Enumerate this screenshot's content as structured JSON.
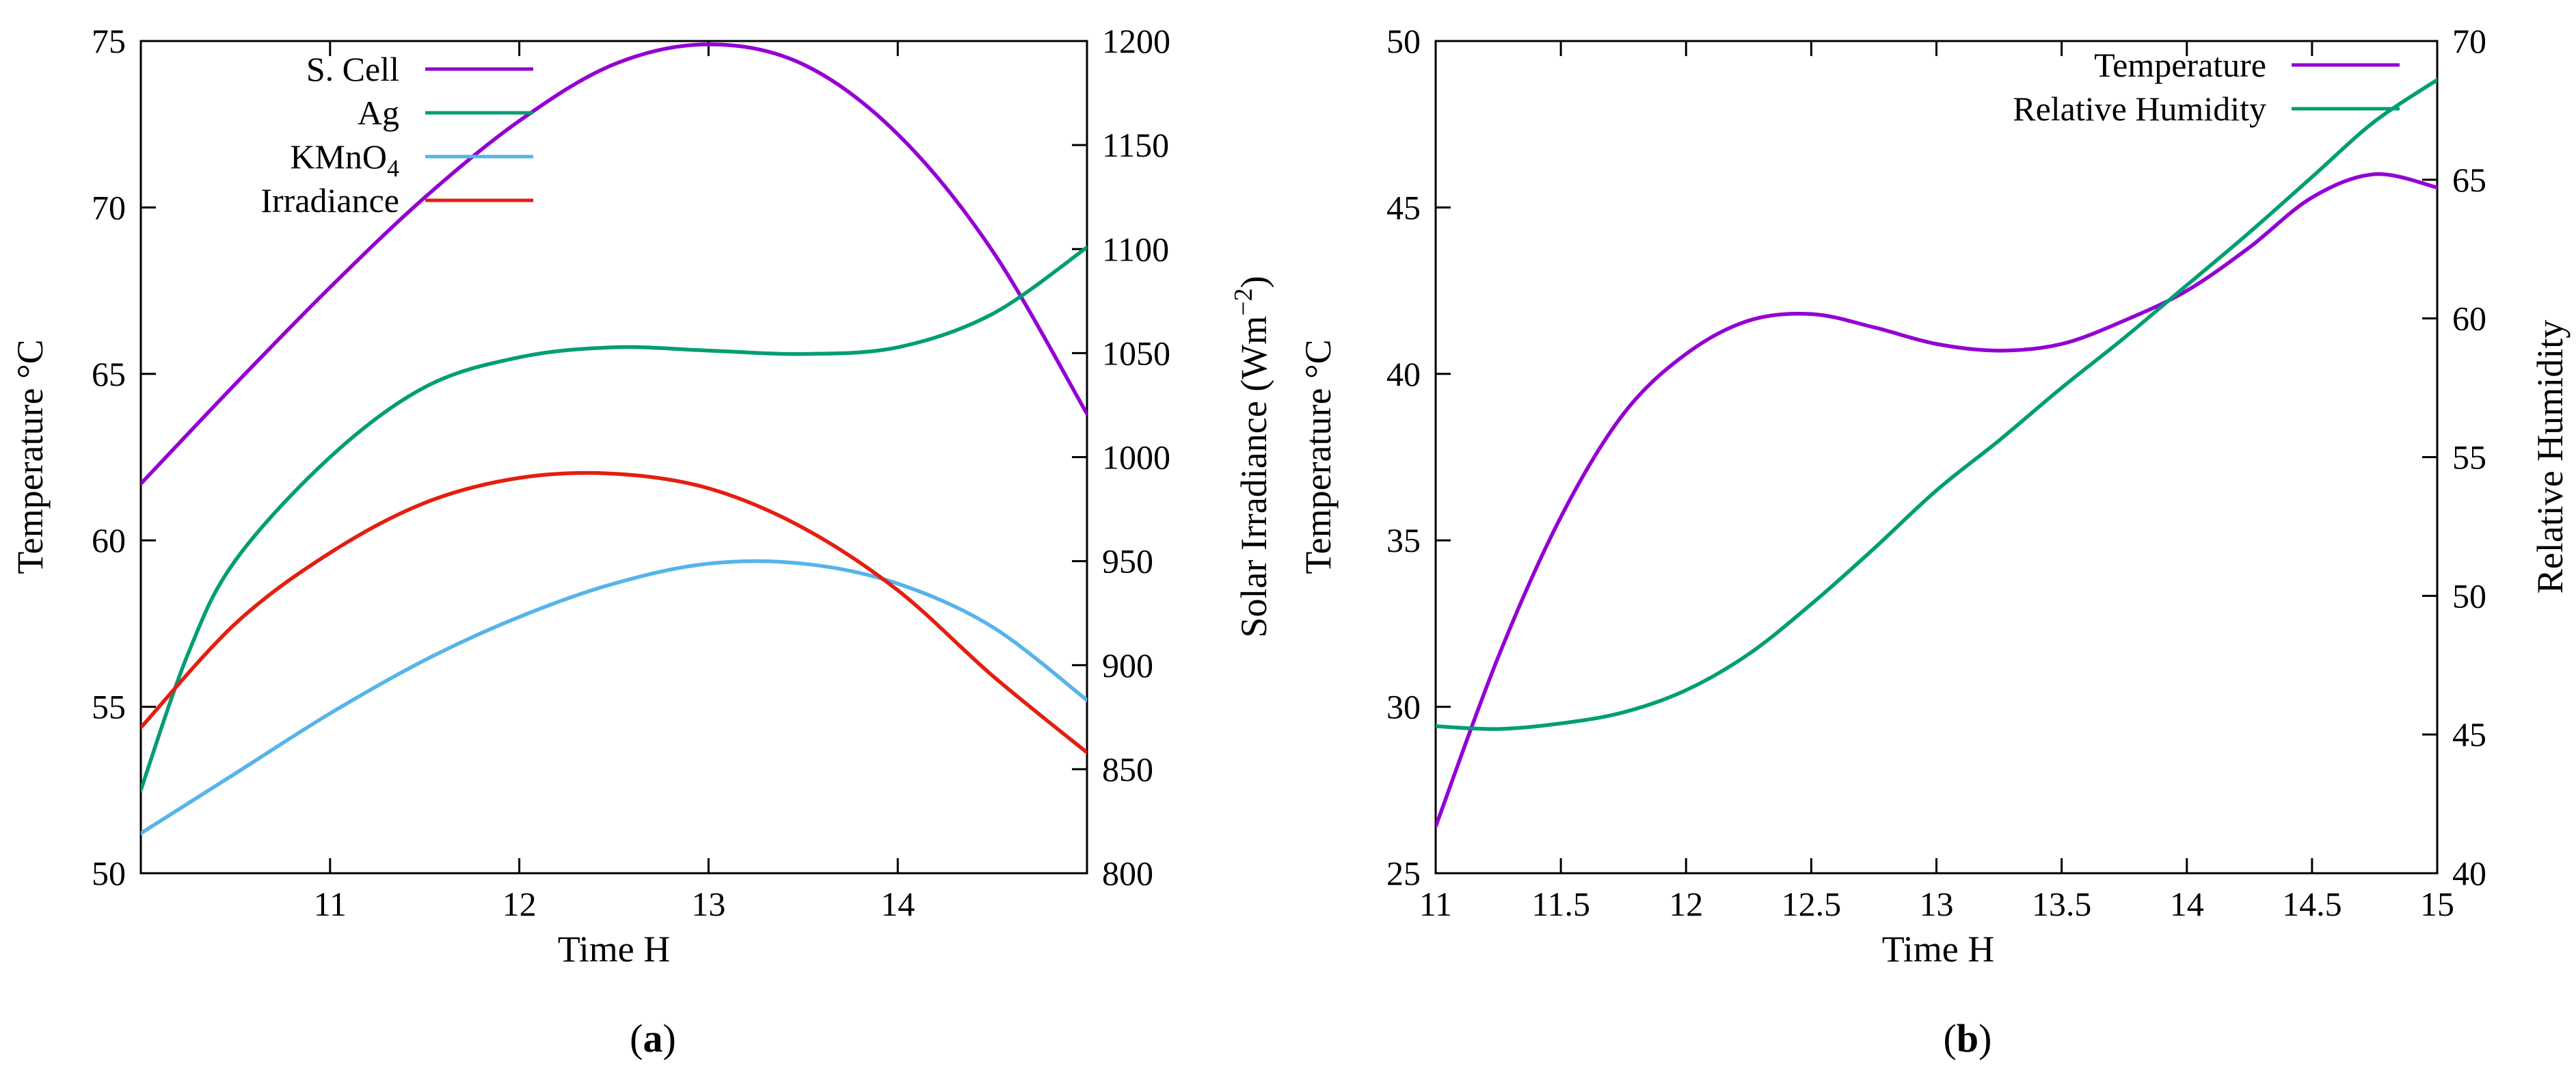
{
  "colors": {
    "purple": "#9400d3",
    "green": "#009e73",
    "blue": "#56b4e9",
    "red": "#e51e10"
  },
  "captions": {
    "a": "a",
    "b": "b"
  },
  "chart_data": [
    {
      "type": "line",
      "xlabel": "Time H",
      "ylabel": "Temperature °C",
      "y2label_base": "Solar Irradiance (Wm",
      "y2label_sup": "−2",
      "y2label_end": ")",
      "xlim": [
        10,
        15
      ],
      "ylim": [
        50,
        75
      ],
      "y2lim": [
        800,
        1200
      ],
      "xticks": [
        "11",
        "12",
        "13",
        "14"
      ],
      "xtick_values": [
        11,
        12,
        13,
        14
      ],
      "yticks": [
        "50",
        "55",
        "60",
        "65",
        "70",
        "75"
      ],
      "ytick_values": [
        50,
        55,
        60,
        65,
        70,
        75
      ],
      "y2ticks": [
        "800",
        "850",
        "900",
        "950",
        "1000",
        "1050",
        "1100",
        "1150",
        "1200"
      ],
      "y2tick_values": [
        800,
        850,
        900,
        950,
        1000,
        1050,
        1100,
        1150,
        1200
      ],
      "grid": false,
      "legend_position": "top-left",
      "series": [
        {
          "name": "S. Cell",
          "name_sub": "",
          "color": "#9400d3",
          "axis": "y",
          "x": [
            10,
            10.5,
            11,
            11.5,
            12,
            12.5,
            13,
            13.5,
            14,
            14.5,
            15
          ],
          "y": [
            61.7,
            64.7,
            67.6,
            70.3,
            72.6,
            74.3,
            74.9,
            74.3,
            72.2,
            68.7,
            63.8
          ]
        },
        {
          "name": "Ag",
          "name_sub": "",
          "color": "#009e73",
          "axis": "y",
          "x": [
            10,
            10.25,
            10.5,
            11,
            11.5,
            12,
            12.5,
            13,
            13.5,
            14,
            14.5,
            15
          ],
          "y": [
            52.5,
            56.6,
            59.4,
            62.5,
            64.6,
            65.5,
            65.8,
            65.7,
            65.6,
            65.8,
            66.8,
            68.8
          ]
        },
        {
          "name": "KMnO",
          "name_sub": "4",
          "color": "#56b4e9",
          "axis": "y",
          "x": [
            10,
            10.5,
            11,
            11.5,
            12,
            12.5,
            13,
            13.5,
            14,
            14.5,
            15
          ],
          "y": [
            51.2,
            53.0,
            54.8,
            56.4,
            57.7,
            58.7,
            59.3,
            59.3,
            58.7,
            57.4,
            55.2
          ]
        },
        {
          "name": "Irradiance",
          "name_sub": "",
          "color": "#e51e10",
          "axis": "y2",
          "x": [
            10,
            10.5,
            11,
            11.5,
            12,
            12.5,
            13,
            13.5,
            14,
            14.5,
            15
          ],
          "y": [
            870,
            920,
            954,
            978,
            990,
            992,
            985,
            966,
            936,
            895,
            858
          ]
        }
      ]
    },
    {
      "type": "line",
      "xlabel": "Time H",
      "ylabel": "Temperature °C",
      "y2label": "Relative Humidity",
      "xlim": [
        11,
        15
      ],
      "ylim": [
        25,
        50
      ],
      "y2lim": [
        40,
        70
      ],
      "xticks": [
        "11",
        "11.5",
        "12",
        "12.5",
        "13",
        "13.5",
        "14",
        "14.5",
        "15"
      ],
      "xtick_values": [
        11,
        11.5,
        12,
        12.5,
        13,
        13.5,
        14,
        14.5,
        15
      ],
      "yticks": [
        "25",
        "30",
        "35",
        "40",
        "45",
        "50"
      ],
      "ytick_values": [
        25,
        30,
        35,
        40,
        45,
        50
      ],
      "y2ticks": [
        "40",
        "45",
        "50",
        "55",
        "60",
        "65",
        "70"
      ],
      "y2tick_values": [
        40,
        45,
        50,
        55,
        60,
        65,
        70
      ],
      "grid": false,
      "legend_position": "top-right",
      "series": [
        {
          "name": "Temperature",
          "color": "#9400d3",
          "axis": "y",
          "x": [
            11,
            11.25,
            11.5,
            11.75,
            12,
            12.25,
            12.5,
            12.75,
            13,
            13.25,
            13.5,
            13.75,
            14,
            14.25,
            14.5,
            14.75,
            15
          ],
          "y": [
            26.4,
            31.5,
            35.7,
            38.8,
            40.6,
            41.6,
            41.8,
            41.4,
            40.9,
            40.7,
            40.9,
            41.6,
            42.5,
            43.8,
            45.3,
            46.0,
            45.6
          ]
        },
        {
          "name": "Relative Humidity",
          "color": "#009e73",
          "axis": "y2",
          "x": [
            11,
            11.25,
            11.5,
            11.75,
            12,
            12.25,
            12.5,
            12.75,
            13,
            13.25,
            13.5,
            13.75,
            14,
            14.25,
            14.5,
            14.75,
            15
          ],
          "y": [
            45.3,
            45.2,
            45.4,
            45.8,
            46.6,
            47.9,
            49.7,
            51.7,
            53.8,
            55.6,
            57.5,
            59.3,
            61.2,
            63.1,
            65.1,
            67.1,
            68.6
          ]
        }
      ]
    }
  ]
}
